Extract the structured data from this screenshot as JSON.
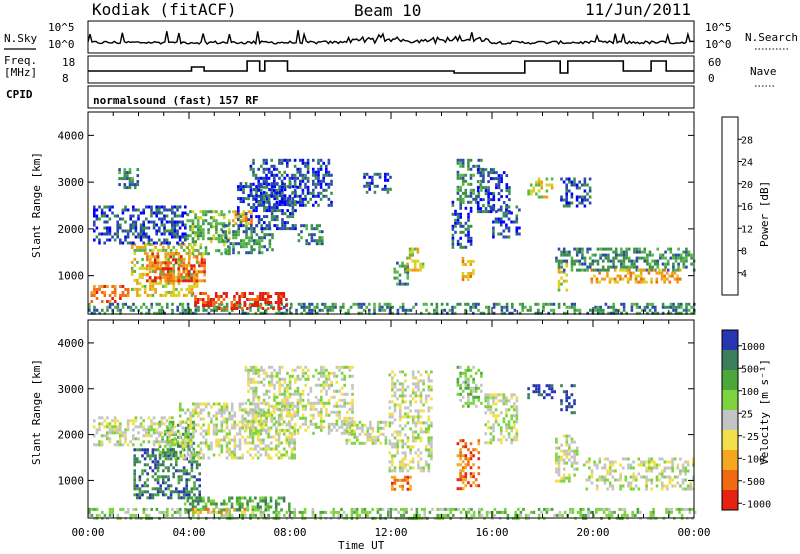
{
  "header": {
    "station": "Kodiak (fitACF)",
    "beam": "Beam 10",
    "date": "11/Jun/2011"
  },
  "summary_panels": {
    "nsky_label": "N.Sky",
    "nsearch_label": "N.Search",
    "nsky_ticks": [
      "10^5",
      "10^0"
    ],
    "nsearch_ticks": [
      "10^5",
      "10^0"
    ],
    "freq_label_line1": "Freq.",
    "freq_label_line2": "[MHz]",
    "freq_ticks": [
      "18",
      "8"
    ],
    "nave_label": "Nave",
    "nave_ticks": [
      "60",
      "0"
    ],
    "cpid_label": "CPID",
    "cpid_text": "normalsound (fast) 157 RF"
  },
  "colors": {
    "power_scale": [
      "#0000ff",
      "#2a4aa8",
      "#3a8f4a",
      "#56b64a",
      "#d7d21f",
      "#f29c1b",
      "#f36a10",
      "#e01e10"
    ],
    "velocity_scale": [
      "#2636b0",
      "#3c7d5b",
      "#4aa83a",
      "#7cd33e",
      "#c4c4c4",
      "#f2e04a",
      "#f4a71f",
      "#f06a12",
      "#e52214"
    ]
  },
  "chart_data": [
    {
      "type": "heatmap",
      "name": "power",
      "xlabel": "",
      "ylabel": "Slant Range [km]",
      "xlim": [
        "00:00",
        "24:00"
      ],
      "ylim": [
        180,
        4500
      ],
      "y_ticks": [
        "1000",
        "2000",
        "3000",
        "4000"
      ],
      "colorbar_label": "Power [dB]",
      "colorbar_ticks": [
        "4",
        "8",
        "12",
        "16",
        "20",
        "24",
        "28"
      ],
      "regions": [
        {
          "t0": 0.0,
          "t1": 7.9,
          "r0": 180,
          "r1": 420,
          "level": 2
        },
        {
          "t0": 4.1,
          "t1": 7.9,
          "r0": 300,
          "r1": 650,
          "level": 7
        },
        {
          "t0": 0.1,
          "t1": 1.6,
          "r0": 420,
          "r1": 800,
          "level": 6
        },
        {
          "t0": 1.7,
          "t1": 4.3,
          "r0": 600,
          "r1": 1700,
          "level": 4
        },
        {
          "t0": 2.3,
          "t1": 4.6,
          "r0": 900,
          "r1": 1500,
          "level": 6
        },
        {
          "t0": 3.9,
          "t1": 5.6,
          "r0": 1500,
          "r1": 2400,
          "level": 3
        },
        {
          "t0": 0.2,
          "t1": 3.9,
          "r0": 1700,
          "r1": 2500,
          "level": 1
        },
        {
          "t0": 1.2,
          "t1": 2.1,
          "r0": 2900,
          "r1": 3300,
          "level": 2
        },
        {
          "t0": 5.3,
          "t1": 7.3,
          "r0": 1500,
          "r1": 2100,
          "level": 2
        },
        {
          "t0": 5.6,
          "t1": 6.5,
          "r0": 2100,
          "r1": 2400,
          "level": 5
        },
        {
          "t0": 5.9,
          "t1": 8.2,
          "r0": 2000,
          "r1": 3000,
          "level": 1
        },
        {
          "t0": 6.4,
          "t1": 9.6,
          "r0": 2500,
          "r1": 3500,
          "level": 1
        },
        {
          "t0": 8.3,
          "t1": 9.3,
          "r0": 1700,
          "r1": 2100,
          "level": 2
        },
        {
          "t0": 10.9,
          "t1": 12.0,
          "r0": 2800,
          "r1": 3200,
          "level": 1
        },
        {
          "t0": 12.1,
          "t1": 12.7,
          "r0": 800,
          "r1": 1300,
          "level": 2
        },
        {
          "t0": 12.6,
          "t1": 13.3,
          "r0": 1100,
          "r1": 1600,
          "level": 4
        },
        {
          "t0": 14.4,
          "t1": 15.2,
          "r0": 1600,
          "r1": 2600,
          "level": 1
        },
        {
          "t0": 14.8,
          "t1": 15.3,
          "r0": 900,
          "r1": 1400,
          "level": 5
        },
        {
          "t0": 14.6,
          "t1": 15.6,
          "r0": 2600,
          "r1": 3500,
          "level": 2
        },
        {
          "t0": 15.4,
          "t1": 16.7,
          "r0": 2400,
          "r1": 3300,
          "level": 1
        },
        {
          "t0": 15.9,
          "t1": 17.1,
          "r0": 1800,
          "r1": 2500,
          "level": 1
        },
        {
          "t0": 17.4,
          "t1": 18.4,
          "r0": 2700,
          "r1": 3100,
          "level": 4
        },
        {
          "t0": 18.7,
          "t1": 19.9,
          "r0": 2500,
          "r1": 3100,
          "level": 1
        },
        {
          "t0": 18.6,
          "t1": 19.0,
          "r0": 700,
          "r1": 1300,
          "level": 4
        },
        {
          "t0": 18.5,
          "t1": 24.0,
          "r0": 1100,
          "r1": 1600,
          "level": 2
        },
        {
          "t0": 19.9,
          "t1": 23.5,
          "r0": 850,
          "r1": 1150,
          "level": 5
        },
        {
          "t0": 8.0,
          "t1": 24.0,
          "r0": 180,
          "r1": 420,
          "level": 2
        }
      ]
    },
    {
      "type": "heatmap",
      "name": "velocity",
      "xlabel": "Time UT",
      "ylabel": "Slant Range [km]",
      "xlim": [
        "00:00",
        "24:00"
      ],
      "ylim": [
        180,
        4500
      ],
      "x_ticks": [
        "00:00",
        "04:00",
        "08:00",
        "12:00",
        "16:00",
        "20:00",
        "00:00"
      ],
      "y_ticks": [
        "1000",
        "2000",
        "3000",
        "4000"
      ],
      "colorbar_label": "Velocity [m s⁻¹]",
      "colorbar_ticks": [
        "1000",
        "500",
        "100",
        "25",
        "-25",
        "-100",
        "-500",
        "-1000"
      ],
      "regions": [
        {
          "t0": 0.0,
          "t1": 24.0,
          "r0": 180,
          "r1": 400,
          "level": 3
        },
        {
          "t0": 3.8,
          "t1": 8.0,
          "r0": 350,
          "r1": 650,
          "level": 2
        },
        {
          "t0": 4.1,
          "t1": 6.5,
          "r0": 280,
          "r1": 400,
          "level": 6
        },
        {
          "t0": 1.8,
          "t1": 4.4,
          "r0": 600,
          "r1": 1700,
          "level": 1
        },
        {
          "t0": 2.8,
          "t1": 4.2,
          "r0": 1500,
          "r1": 2300,
          "level": 2
        },
        {
          "t0": 0.2,
          "t1": 3.5,
          "r0": 1800,
          "r1": 2400,
          "level": 4
        },
        {
          "t0": 3.6,
          "t1": 8.2,
          "r0": 1500,
          "r1": 2700,
          "level": 4
        },
        {
          "t0": 6.2,
          "t1": 10.5,
          "r0": 2000,
          "r1": 3500,
          "level": 4
        },
        {
          "t0": 10.2,
          "t1": 11.8,
          "r0": 1800,
          "r1": 2300,
          "level": 4
        },
        {
          "t0": 11.9,
          "t1": 13.6,
          "r0": 1200,
          "r1": 3400,
          "level": 4
        },
        {
          "t0": 12.0,
          "t1": 12.8,
          "r0": 800,
          "r1": 1100,
          "level": 7
        },
        {
          "t0": 14.6,
          "t1": 15.5,
          "r0": 800,
          "r1": 1900,
          "level": 7
        },
        {
          "t0": 14.6,
          "t1": 15.6,
          "r0": 2600,
          "r1": 3500,
          "level": 3
        },
        {
          "t0": 15.7,
          "t1": 17.0,
          "r0": 1800,
          "r1": 2900,
          "level": 4
        },
        {
          "t0": 17.4,
          "t1": 18.5,
          "r0": 2800,
          "r1": 3100,
          "level": 0
        },
        {
          "t0": 18.7,
          "t1": 19.3,
          "r0": 2500,
          "r1": 3100,
          "level": 0
        },
        {
          "t0": 18.5,
          "t1": 19.4,
          "r0": 1000,
          "r1": 2000,
          "level": 4
        },
        {
          "t0": 19.6,
          "t1": 24.0,
          "r0": 800,
          "r1": 1500,
          "level": 4
        }
      ]
    }
  ]
}
